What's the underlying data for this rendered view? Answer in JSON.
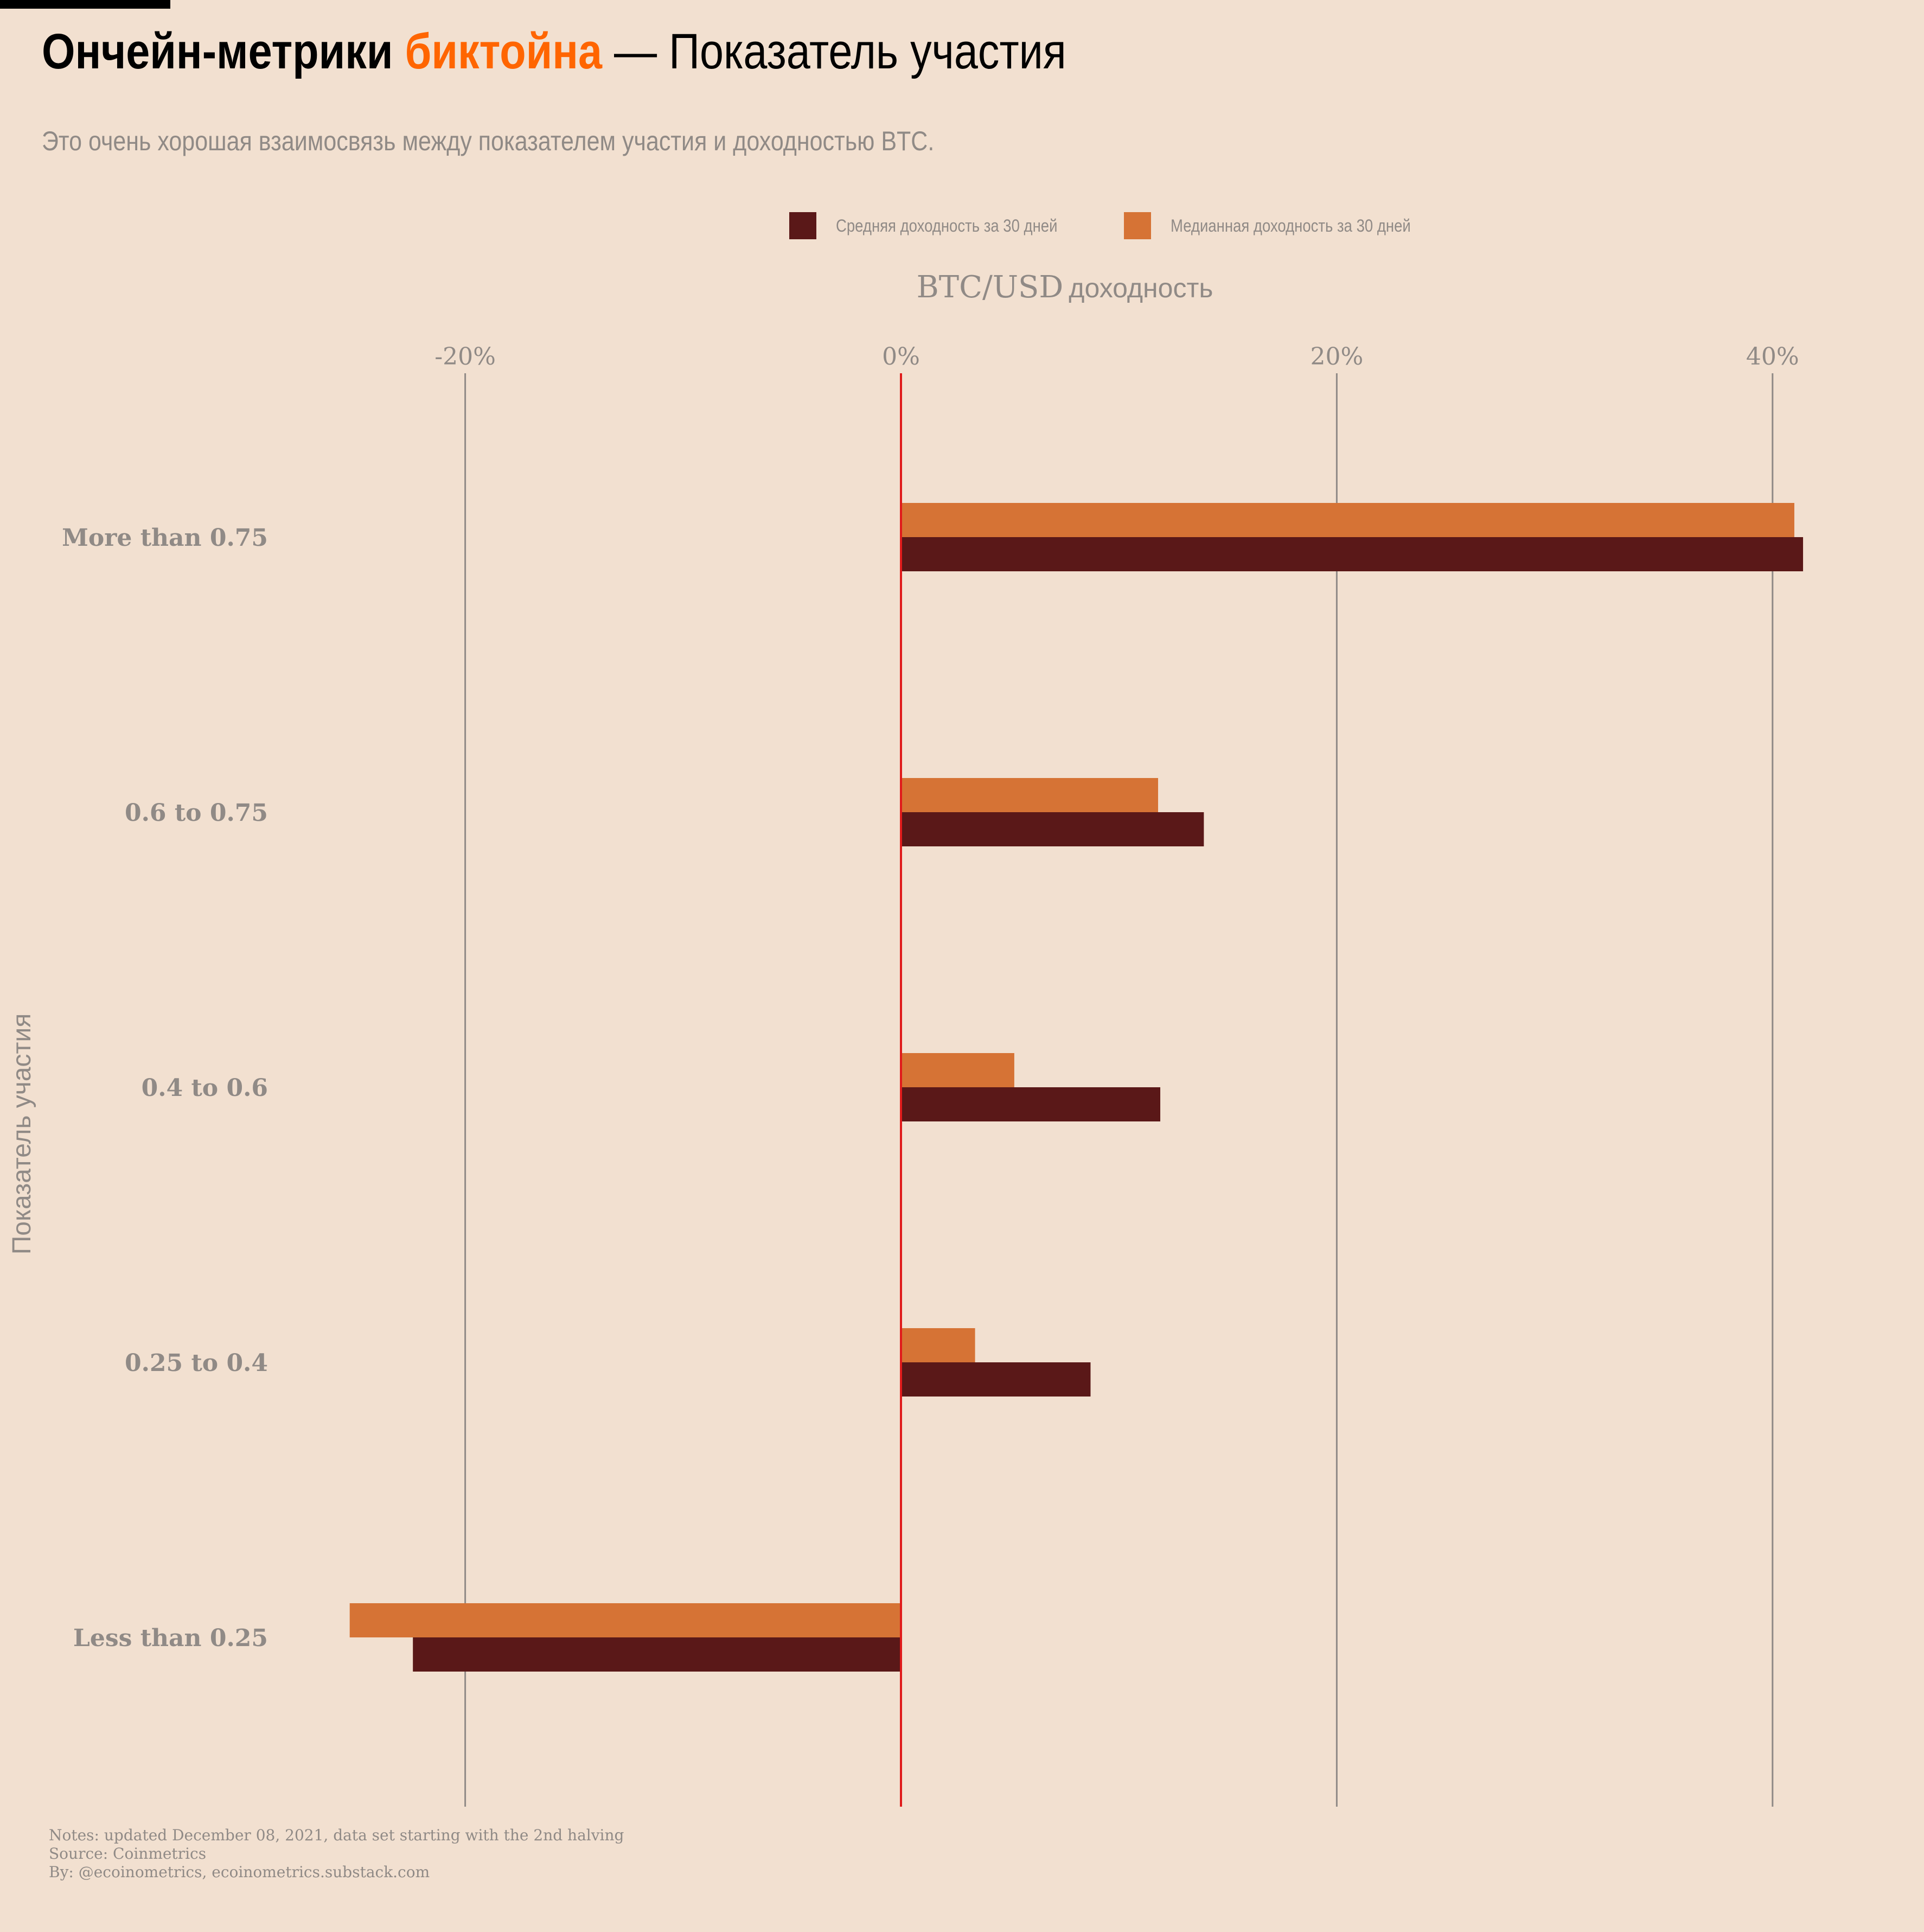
{
  "title": {
    "part1": "Ончейн-метрики ",
    "part2": "биктойна",
    "part3": " — Показатель участия"
  },
  "subtitle": "Это очень хорошая взаимосвязь между показателем участия и доходностью BTC.",
  "colors": {
    "background": "#f2e0d0",
    "mean": "#5a1818",
    "median": "#d67335",
    "accent": "#ff6500",
    "zero_line": "#e01b1b",
    "grid": "#908a86",
    "muted_text": "#908a86"
  },
  "chart_data": {
    "type": "bar",
    "orientation": "horizontal",
    "x_title_main": "BTC/USD",
    "x_title_suffix": "доходность",
    "ylabel": "Показатель участия",
    "xlim": [
      -40,
      45
    ],
    "xticks": [
      -20,
      0,
      20,
      40
    ],
    "xtick_labels": [
      "-20%",
      "0%",
      "20%",
      "40%"
    ],
    "x_axis_position": "top",
    "grid": true,
    "legend_position": "top",
    "categories": [
      "More than 0.75",
      "0.6 to 0.75",
      "0.4 to 0.6",
      "0.25 to 0.4",
      "Less than 0.25"
    ],
    "series": [
      {
        "name": "Средняя  доходность за 30 дней",
        "color": "#5a1818",
        "values": [
          41.4,
          13.9,
          11.9,
          8.7,
          -22.4
        ]
      },
      {
        "name": "Медианная доходность за 30 дней",
        "color": "#d67335",
        "values": [
          41.0,
          11.8,
          5.2,
          3.4,
          -25.3
        ]
      }
    ]
  },
  "footer": {
    "notes": "Notes: updated December 08, 2021, data set starting with the 2nd halving",
    "source": "Source: Coinmetrics",
    "by": "By: @ecoinometrics, ecoinometrics.substack.com"
  }
}
